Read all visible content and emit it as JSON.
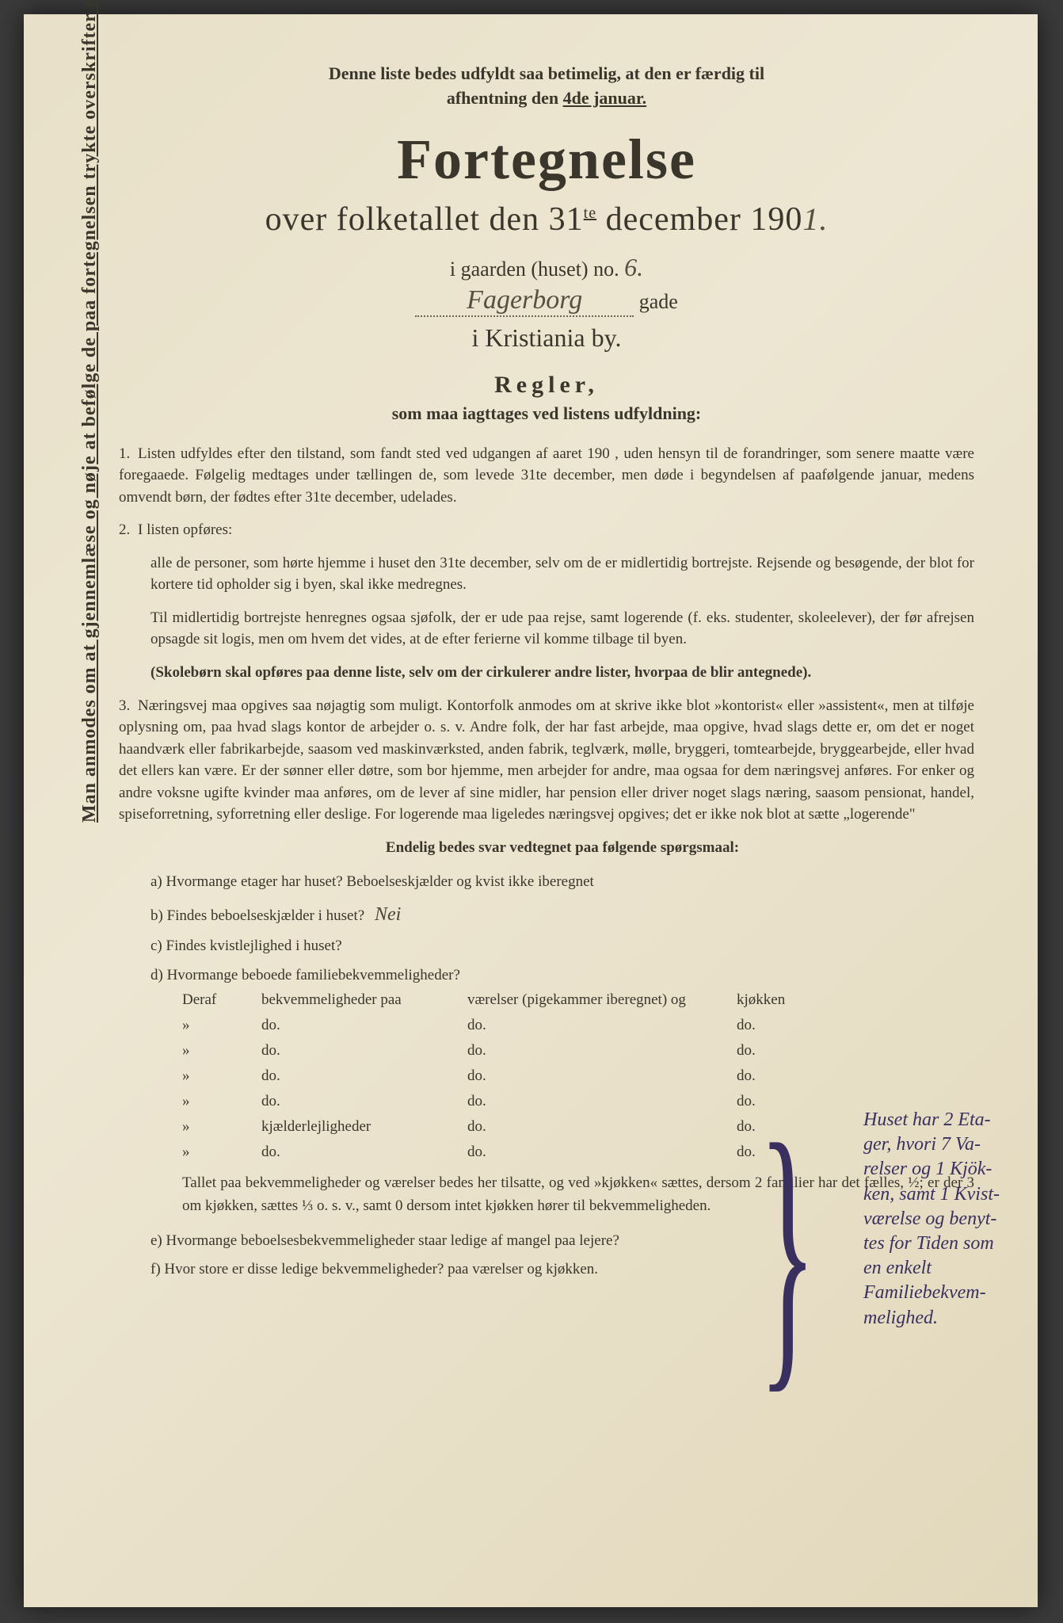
{
  "colors": {
    "paper": "#e8e0c8",
    "ink": "#3a362c",
    "handwriting": "#555040",
    "margin_note": "#3a3060",
    "background": "#3a3a3a"
  },
  "typography": {
    "body_family": "Times New Roman",
    "hand_family": "cursive",
    "h1_size": 72,
    "subtitle_size": 42,
    "body_size": 19
  },
  "sideways_text": "Man anmodes om at gjennemlæse og nøje at befølge de paa fortegnelsen trykte overskrifter og anvisninger.",
  "top_note_1": "Denne liste bedes udfyldt saa betimelig, at den er færdig til",
  "top_note_2a": "afhentning den ",
  "top_note_2b": "4de januar.",
  "title": "Fortegnelse",
  "subtitle_a": "over folketallet den 31",
  "subtitle_sup": "te",
  "subtitle_b": " december 190",
  "year_hand": "1.",
  "gaarden_label": "i gaarden (huset) no.",
  "gaarden_no": "6.",
  "street_hand": "Fagerborg",
  "gade_label": "gade",
  "city": "i Kristiania by.",
  "regler": "Regler,",
  "regler_sub": "som maa iagttages ved listens udfyldning:",
  "rule1": "Listen udfyldes efter den tilstand, som fandt sted ved udgangen af aaret 190   , uden hensyn til de forandringer, som senere maatte være foregaaede. Følgelig medtages under tællingen de, som levede 31te december, men døde i begyndelsen af paafølgende januar, medens omvendt børn, der fødtes efter 31te december, udelades.",
  "rule2_intro": "I listen opføres:",
  "rule2_a": "alle de personer, som hørte hjemme i huset den 31te december, selv om de er midlertidig bortrejste. Rejsende og besøgende, der blot for kortere tid opholder sig i byen, skal ikke medregnes.",
  "rule2_b": "Til midlertidig bortrejste henregnes ogsaa sjøfolk, der er ude paa rejse, samt logerende (f. eks. studenter, skoleelever), der før afrejsen opsagde sit logis, men om hvem det vides, at de efter ferierne vil komme tilbage til byen.",
  "rule2_c": "(Skolebørn skal opføres paa denne liste, selv om der cirkulerer andre lister, hvorpaa de blir antegnede).",
  "rule3": "Næringsvej maa opgives saa nøjagtig som muligt. Kontorfolk anmodes om at skrive ikke blot »kontorist« eller »assistent«, men at tilføje oplysning om, paa hvad slags kontor de arbejder o. s. v. Andre folk, der har fast arbejde, maa opgive, hvad slags dette er, om det er noget haandværk eller fabrikarbejde, saasom ved maskinværksted, anden fabrik, teglværk, mølle, bryggeri, tomtearbejde, bryggearbejde, eller hvad det ellers kan være. Er der sønner eller døtre, som bor hjemme, men arbejder for andre, maa ogsaa for dem næringsvej anføres. For enker og andre voksne ugifte kvinder maa anføres, om de lever af sine midler, har pension eller driver noget slags næring, saasom pensionat, handel, spiseforretning, syforretning eller deslige. For logerende maa ligeledes næringsvej opgives; det er ikke nok blot at sætte „logerende\"",
  "final_heading": "Endelig bedes svar vedtegnet paa følgende spørgsmaal:",
  "qa": "a) Hvormange etager har huset?  Beboelseskjælder og kvist ikke iberegnet",
  "qb": "b) Findes beboelseskjælder i huset?",
  "qb_answer": "Nei",
  "qc": "c) Findes kvistlejlighed i huset?",
  "qd": "d) Hvormange beboede familiebekvemmeligheder?",
  "table_header": {
    "c1": "Deraf",
    "c2": "bekvemmeligheder paa",
    "c3": "værelser (pigekammer iberegnet) og",
    "c4": "kjøkken"
  },
  "table_rows": [
    {
      "c1": "»",
      "c2": "do.",
      "c3": "do.",
      "c4": "do."
    },
    {
      "c1": "»",
      "c2": "do.",
      "c3": "do.",
      "c4": "do."
    },
    {
      "c1": "»",
      "c2": "do.",
      "c3": "do.",
      "c4": "do."
    },
    {
      "c1": "»",
      "c2": "do.",
      "c3": "do.",
      "c4": "do."
    },
    {
      "c1": "»",
      "c2": "kjælderlejligheder",
      "c3": "do.",
      "c4": "do."
    },
    {
      "c1": "»",
      "c2": "do.",
      "c3": "do.",
      "c4": "do."
    }
  ],
  "footer1": "Tallet paa bekvemmeligheder og værelser bedes her tilsatte, og ved »kjøkken« sættes, dersom 2 familier har det fælles, ½; er der 3 om kjøkken, sættes ⅓ o. s. v., samt 0 dersom intet kjøkken hører til bekvemmeligheden.",
  "qe": "e) Hvormange beboelsesbekvemmeligheder staar ledige af mangel paa lejere?",
  "qf": "f) Hvor store er disse ledige bekvemmeligheder?          paa          værelser og          kjøkken.",
  "margin_note": "Huset har 2 Eta-ger, hvori 7 Va-relser og 1 Kjök-ken, samt 1 Kvist-værelse og benyt-tes for Tiden som en enkelt Familiebekvem-melighed."
}
